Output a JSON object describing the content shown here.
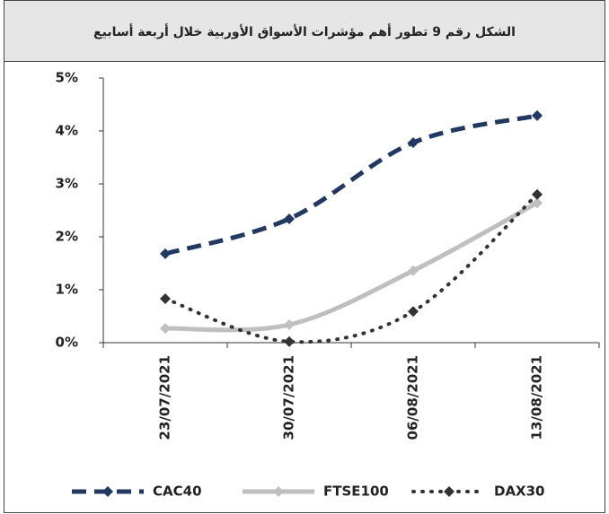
{
  "chart_data": {
    "type": "line",
    "title": "الشكل رقم 9 تطور أهم مؤشرات الأسواق الأوربية خلال أربعة أسابيع",
    "categories": [
      "23/07/2021",
      "30/07/2021",
      "06/08/2021",
      "13/08/2021"
    ],
    "series": [
      {
        "name": "CAC40",
        "color": "#1f3864",
        "values": [
          1.68,
          2.34,
          3.78,
          4.29
        ]
      },
      {
        "name": "FTSE100",
        "color": "#bfbfbf",
        "values": [
          0.27,
          0.34,
          1.36,
          2.64
        ]
      },
      {
        "name": "DAX30",
        "color": "#333333",
        "values": [
          0.83,
          0.02,
          0.59,
          2.8
        ]
      }
    ],
    "ylim": [
      0,
      5
    ],
    "yticks": [
      {
        "value": 0,
        "label": "0%"
      },
      {
        "value": 1,
        "label": "1%"
      },
      {
        "value": 2,
        "label": "2%"
      },
      {
        "value": 3,
        "label": "3%"
      },
      {
        "value": 4,
        "label": "4%"
      },
      {
        "value": 5,
        "label": "5%"
      }
    ],
    "legend": "bottom"
  }
}
